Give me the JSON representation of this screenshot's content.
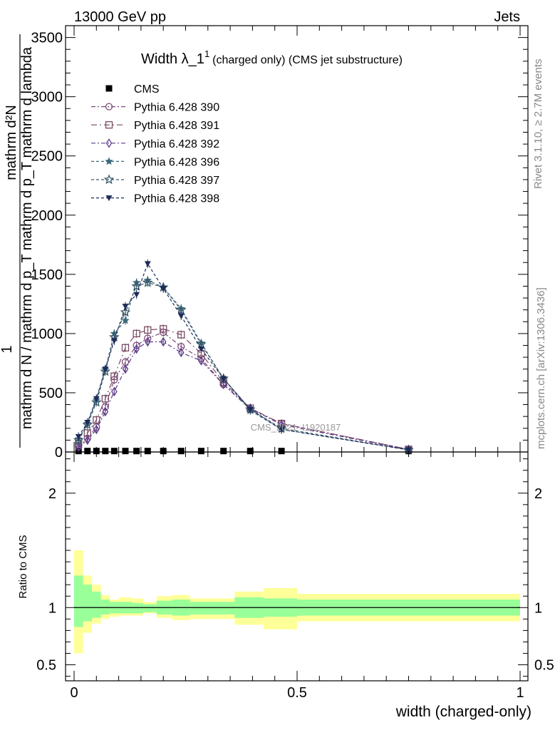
{
  "header": {
    "left": "13000 GeV pp",
    "right": "Jets"
  },
  "side_text": {
    "version": "Rivet 3.1.10, ≥ 2.7M events",
    "source": "mcplots.cern.ch [arXiv:1306.3436]"
  },
  "watermark": "CMS_2021_I1920187",
  "chart_data": [
    {
      "type": "line",
      "title": "Width λ_1¹ (charged only) (CMS jet substructure)",
      "title_parts": {
        "main": "Width λ_1",
        "sup": "1",
        "sub": "(charged only) (CMS jet substructure)"
      },
      "ylabel_lines": [
        "1",
        "mathrm d N / mathrm d p_T mathrm d p_T mathrm d lambda",
        "mathrm d²N"
      ],
      "xlim": [
        0,
        1
      ],
      "ylim": [
        0,
        3600
      ],
      "yticks": [
        0,
        500,
        1000,
        1500,
        2000,
        2500,
        3000,
        3500
      ],
      "ytick_labels": [
        "0",
        "500",
        "1000",
        "1500",
        "2000",
        "2500",
        "3000",
        "3500"
      ],
      "legend_position": "top-left",
      "x": [
        0.01,
        0.03,
        0.05,
        0.07,
        0.09,
        0.115,
        0.14,
        0.165,
        0.2,
        0.24,
        0.285,
        0.335,
        0.395,
        0.465,
        0.75
      ],
      "series": [
        {
          "name": "CMS",
          "color": "#000000",
          "marker": "square-filled",
          "values": [
            8,
            8,
            8,
            8,
            8,
            8,
            8,
            8,
            8,
            8,
            8,
            8,
            8,
            8,
            8
          ]
        },
        {
          "name": "Pythia 6.428 390",
          "color": "#7a4a78",
          "marker": "circle-open",
          "dash": "6,3,2,3",
          "values": [
            45,
            115,
            210,
            380,
            610,
            760,
            900,
            960,
            1010,
            890,
            790,
            570,
            360,
            240,
            22
          ]
        },
        {
          "name": "Pythia 6.428 391",
          "color": "#7a4a64",
          "marker": "square-open",
          "dash": "8,4,2,4",
          "values": [
            70,
            160,
            270,
            450,
            640,
            880,
            1000,
            1030,
            1040,
            990,
            830,
            590,
            370,
            240,
            22
          ]
        },
        {
          "name": "Pythia 6.428 392",
          "color": "#5a3a88",
          "marker": "diamond-open",
          "dash": "6,3,2,3",
          "values": [
            40,
            100,
            190,
            340,
            510,
            700,
            870,
            930,
            930,
            840,
            770,
            570,
            370,
            230,
            20
          ]
        },
        {
          "name": "Pythia 6.428 396",
          "color": "#3a6a7a",
          "marker": "star-filled",
          "dash": "4,3",
          "values": [
            110,
            240,
            440,
            700,
            1000,
            1110,
            1430,
            1450,
            1390,
            1210,
            920,
            620,
            350,
            190,
            18
          ]
        },
        {
          "name": "Pythia 6.428 397",
          "color": "#3a5a6a",
          "marker": "star-open",
          "dash": "4,3",
          "values": [
            100,
            230,
            420,
            680,
            970,
            1180,
            1400,
            1430,
            1390,
            1200,
            910,
            620,
            360,
            200,
            18
          ]
        },
        {
          "name": "Pythia 6.428 398",
          "color": "#1e2a5a",
          "marker": "triangle-down-filled",
          "dash": "4,3",
          "values": [
            130,
            250,
            450,
            700,
            940,
            1230,
            1330,
            1590,
            1380,
            1150,
            870,
            620,
            360,
            190,
            18
          ]
        }
      ]
    },
    {
      "type": "area",
      "ylabel": "Ratio to CMS",
      "xlabel": "width (charged-only)",
      "xlim": [
        0,
        1
      ],
      "ylim": [
        0.36,
        2.36
      ],
      "xticks": [
        0,
        0.5,
        1
      ],
      "xtick_labels": [
        "0",
        "0.5",
        "1"
      ],
      "yticks": [
        0.5,
        1,
        2
      ],
      "ytick_labels": [
        "0.5",
        "1",
        "2"
      ],
      "reference_line": 1,
      "bins": [
        [
          0.0,
          0.02,
          0.6,
          1.5,
          0.83,
          1.28
        ],
        [
          0.02,
          0.04,
          0.78,
          1.28,
          0.88,
          1.2
        ],
        [
          0.04,
          0.06,
          0.86,
          1.2,
          0.91,
          1.14
        ],
        [
          0.06,
          0.08,
          0.9,
          1.11,
          0.94,
          1.07
        ],
        [
          0.08,
          0.1,
          0.92,
          1.07,
          0.95,
          1.05
        ],
        [
          0.1,
          0.13,
          0.93,
          1.09,
          0.95,
          1.05
        ],
        [
          0.13,
          0.155,
          0.93,
          1.08,
          0.95,
          1.04
        ],
        [
          0.155,
          0.185,
          0.95,
          1.05,
          0.96,
          1.03
        ],
        [
          0.185,
          0.22,
          0.91,
          1.1,
          0.94,
          1.06
        ],
        [
          0.22,
          0.26,
          0.89,
          1.11,
          0.93,
          1.07
        ],
        [
          0.26,
          0.31,
          0.9,
          1.08,
          0.94,
          1.05
        ],
        [
          0.31,
          0.36,
          0.9,
          1.08,
          0.94,
          1.05
        ],
        [
          0.36,
          0.425,
          0.85,
          1.14,
          0.91,
          1.09
        ],
        [
          0.425,
          0.5,
          0.81,
          1.17,
          0.92,
          1.08
        ],
        [
          0.5,
          1.0,
          0.88,
          1.12,
          0.93,
          1.07
        ]
      ]
    }
  ],
  "colors": {
    "band_outer": "#ffff99",
    "band_inner": "#99ff99",
    "frame": "#000000",
    "side_text": "#888888"
  }
}
